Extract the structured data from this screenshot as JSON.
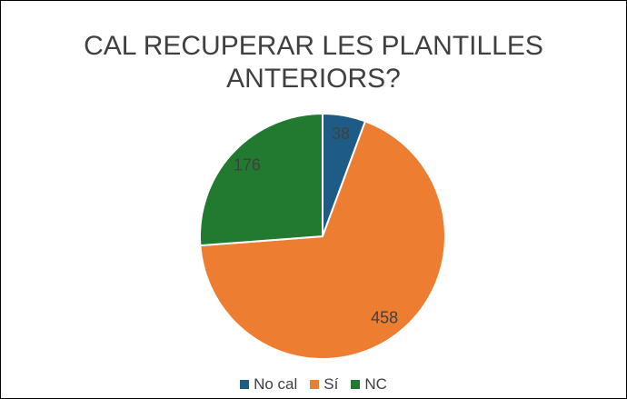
{
  "chart_data": {
    "type": "pie",
    "title": "CAL RECUPERAR LES PLANTILLES ANTERIORS?",
    "categories": [
      "No cal",
      "Sí",
      "NC"
    ],
    "values": [
      38,
      458,
      176
    ],
    "colors": [
      "#1f5c85",
      "#ed7d31",
      "#217a2f"
    ],
    "legend": "bottom"
  }
}
